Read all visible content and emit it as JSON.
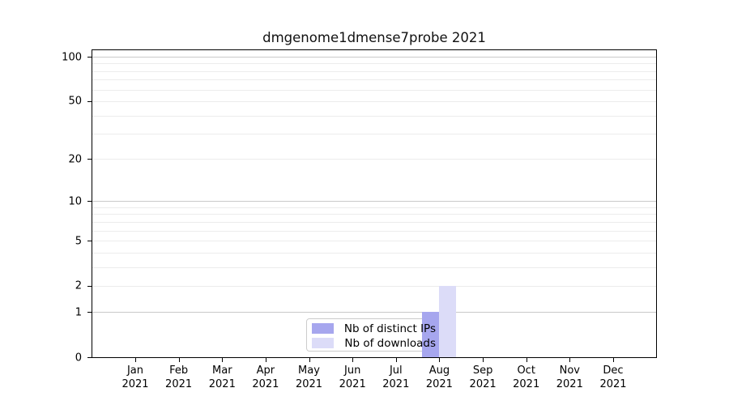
{
  "figure": {
    "background": "#ffffff"
  },
  "chart_data": {
    "type": "bar",
    "title": "dmgenome1dmense7probe 2021",
    "categories": [
      "Jan",
      "Feb",
      "Mar",
      "Apr",
      "May",
      "Jun",
      "Jul",
      "Aug",
      "Sep",
      "Oct",
      "Nov",
      "Dec"
    ],
    "x_year_label": "2021",
    "series": [
      {
        "name": "Nb of distinct IPs",
        "color": "#a6a6ee",
        "values": [
          0,
          0,
          0,
          0,
          0,
          0,
          0,
          1,
          0,
          0,
          0,
          0
        ]
      },
      {
        "name": "Nb of downloads",
        "color": "#dcdcf8",
        "values": [
          0,
          0,
          0,
          0,
          0,
          0,
          0,
          2,
          0,
          0,
          0,
          0
        ]
      }
    ],
    "y_axis": {
      "scale": "symlog",
      "max": 100,
      "ticks": [
        0,
        1,
        2,
        5,
        10,
        20,
        50,
        100
      ],
      "grid_major": [
        1,
        10,
        100
      ],
      "grid_minor": [
        2,
        3,
        4,
        5,
        6,
        7,
        8,
        9,
        20,
        30,
        40,
        50,
        60,
        70,
        80,
        90
      ]
    },
    "legend": {
      "position": "bottom-center",
      "entries": [
        "Nb of distinct IPs",
        "Nb of downloads"
      ]
    },
    "colors": {
      "axis_frame": "#000000",
      "grid_major": "#c9c9c9",
      "grid_minor": "#ececec",
      "tick_text": "#000000",
      "legend_border": "#cccccc"
    }
  }
}
